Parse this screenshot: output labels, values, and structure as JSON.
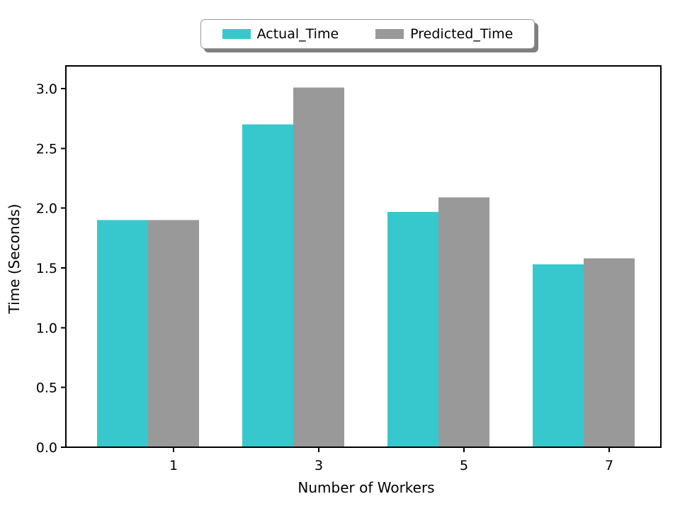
{
  "figure": {
    "background": "#ffffff",
    "axis_color": "#000000"
  },
  "chart_data": {
    "type": "bar",
    "categories": [
      "1",
      "3",
      "5",
      "7"
    ],
    "series": [
      {
        "name": "Actual_Time",
        "color": "#37c8cd",
        "values": [
          1.9,
          2.7,
          1.97,
          1.53
        ]
      },
      {
        "name": "Predicted_Time",
        "color": "#999999",
        "values": [
          1.9,
          3.01,
          2.09,
          1.58
        ]
      }
    ],
    "xlabel": "Number of Workers",
    "ylabel": "Time (Seconds)",
    "ylim": [
      0,
      3.19
    ],
    "yticks": [
      0,
      0.5,
      1,
      1.5,
      2,
      2.5,
      3
    ],
    "ytick_labels": [
      "0.0",
      "0.5",
      "1.0",
      "1.5",
      "2.0",
      "2.5",
      "3.0"
    ],
    "grid": false,
    "legend_position": "top-center"
  },
  "legend": {
    "items": [
      {
        "label": "Actual_Time"
      },
      {
        "label": "Predicted_Time"
      }
    ]
  }
}
